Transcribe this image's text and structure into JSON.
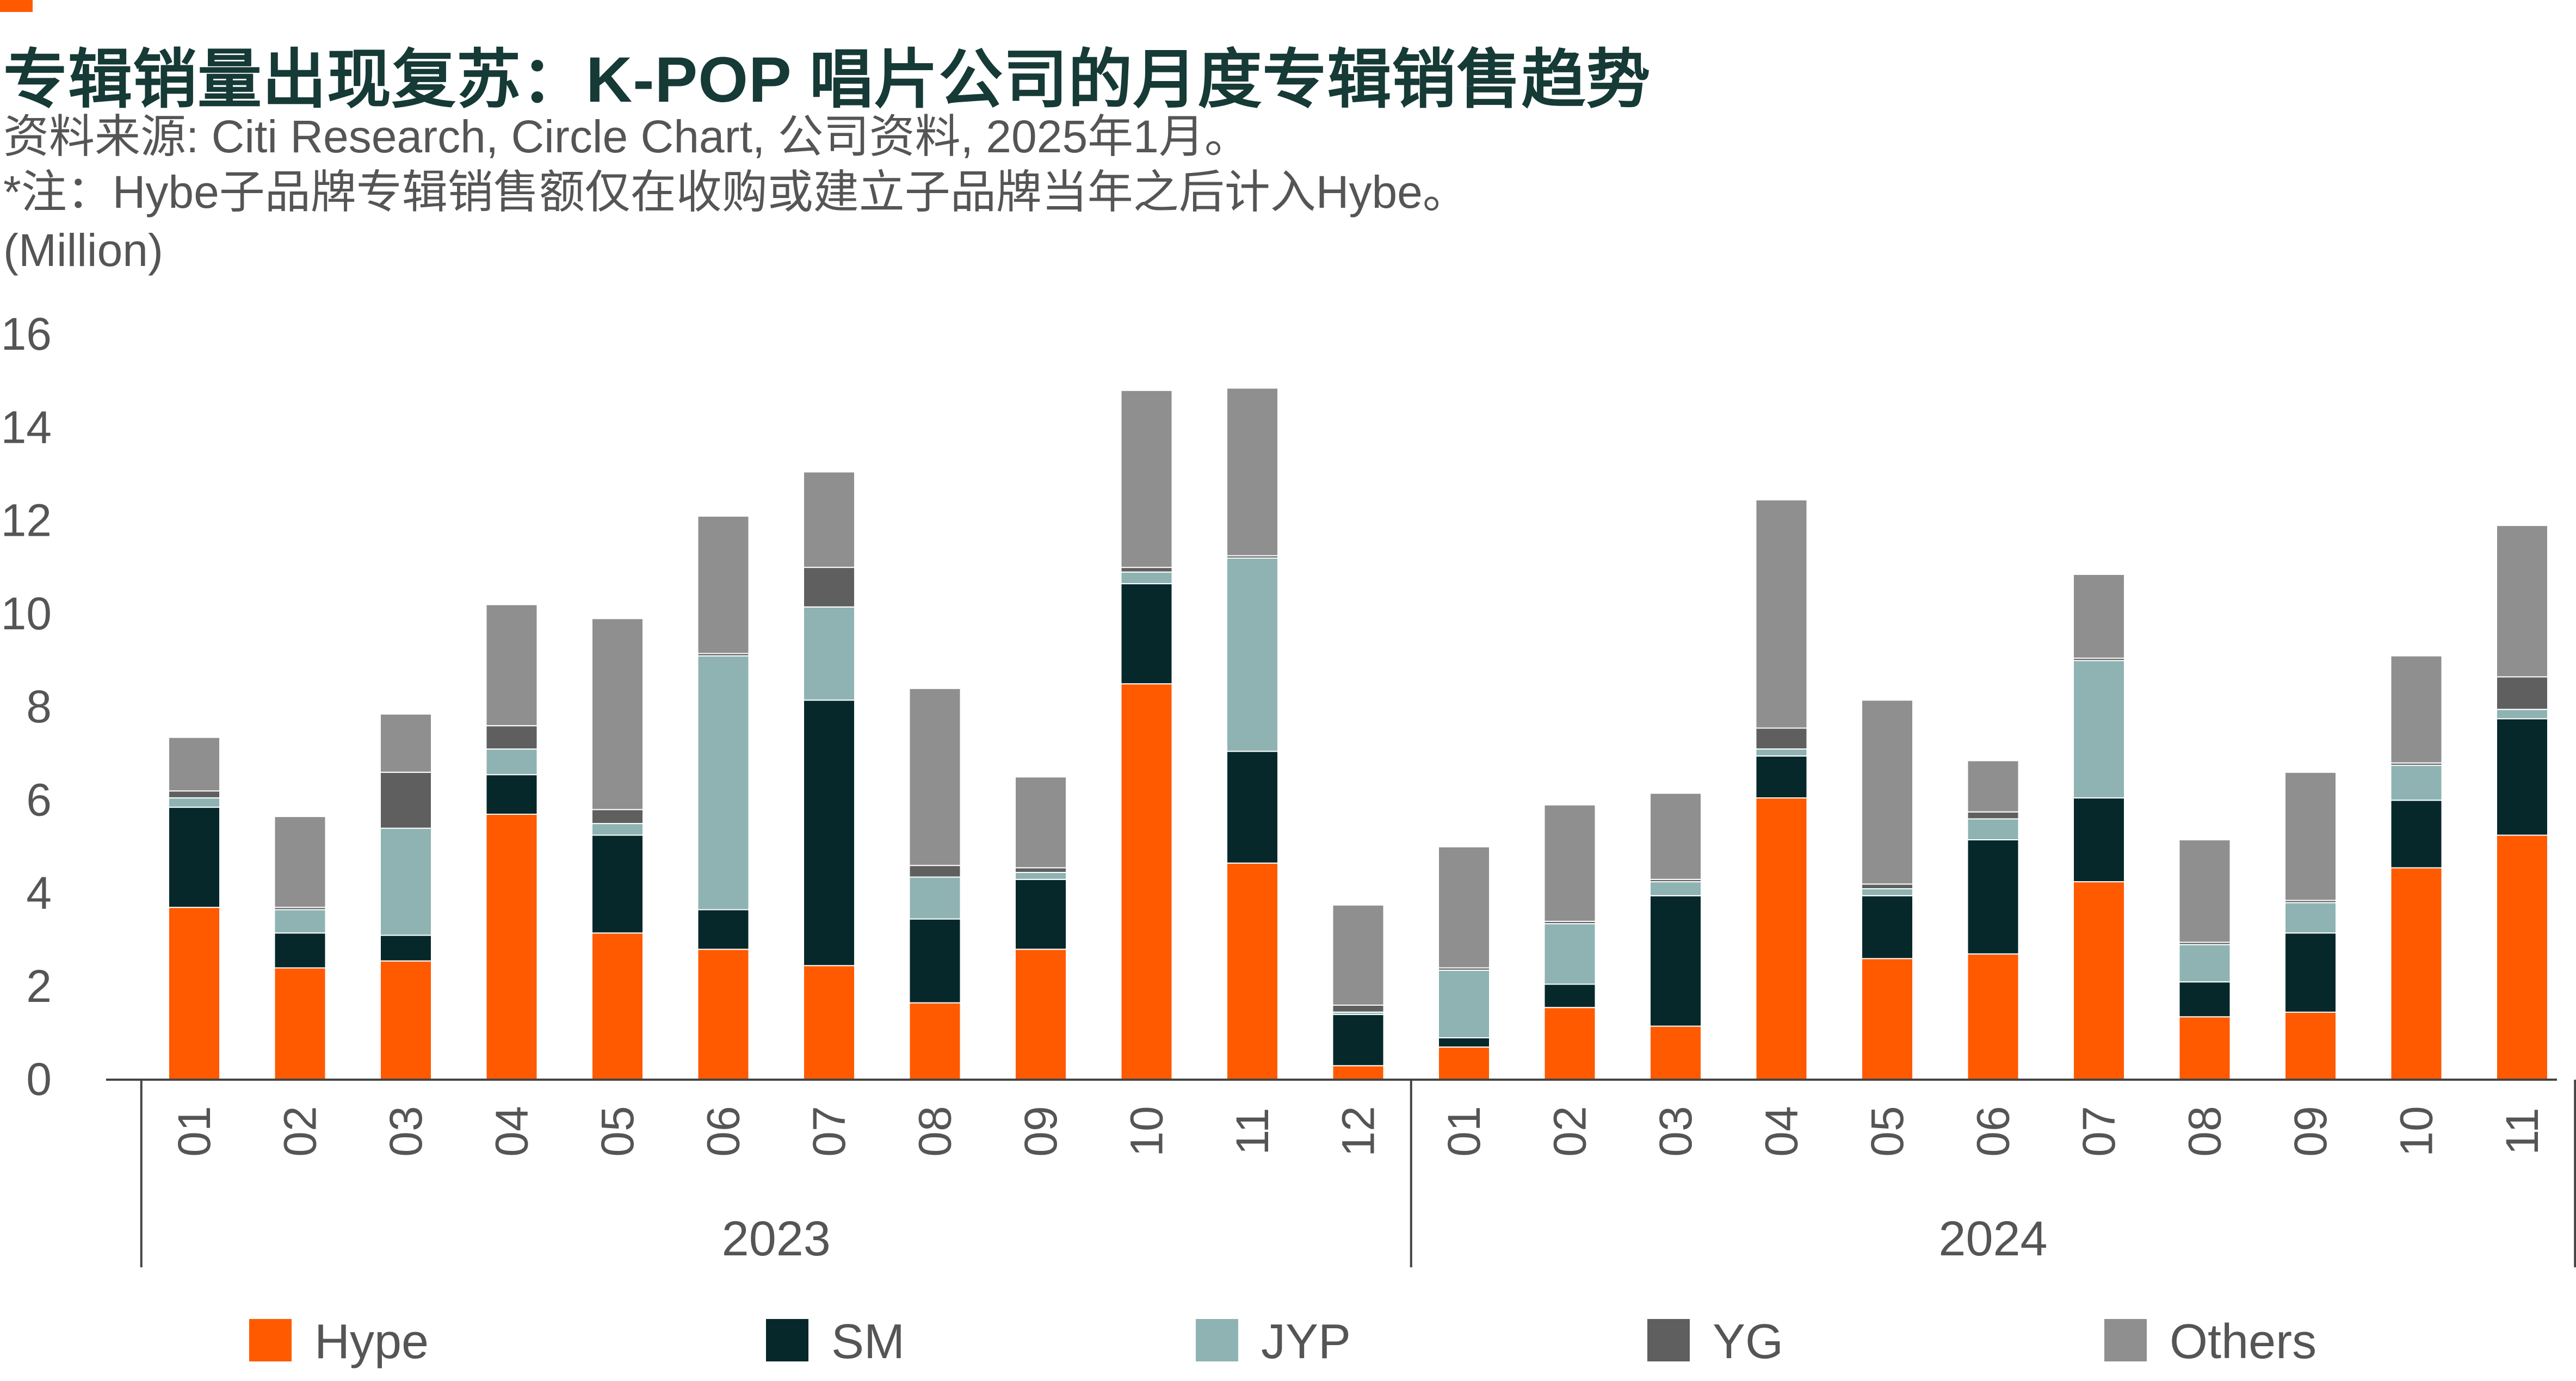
{
  "title": "专辑销量出现复苏：K-POP 唱片公司的月度专辑销售趋势",
  "source_note": "资料来源:  Citi Research, Circle Chart, 公司资料, 2025年1月。",
  "footnote": "*注：Hybe子品牌专辑销售额仅在收购或建立子品牌当年之后计入Hybe。",
  "colors": {
    "accent": "#ff5a00",
    "title": "#163a36",
    "Hype": "#ff5a00",
    "SM": "#06282b",
    "JYP": "#8eb3b2",
    "YG": "#5f5f5f",
    "Others": "#8f8f8f"
  },
  "chart_data": {
    "type": "bar",
    "stacked": true,
    "ylabel": "(Million)",
    "ylim": [
      0,
      16
    ],
    "yticks": [
      0,
      2,
      4,
      6,
      8,
      10,
      12,
      14,
      16
    ],
    "grid": false,
    "legend_position": "bottom",
    "groups": [
      {
        "label": "2023",
        "months": [
          "01",
          "02",
          "03",
          "04",
          "05",
          "06",
          "07",
          "08",
          "09",
          "10",
          "11",
          "12"
        ]
      },
      {
        "label": "2024",
        "months": [
          "01",
          "02",
          "03",
          "04",
          "05",
          "06",
          "07",
          "08",
          "09",
          "10",
          "11"
        ]
      }
    ],
    "categories": [
      "2023-01",
      "2023-02",
      "2023-03",
      "2023-04",
      "2023-05",
      "2023-06",
      "2023-07",
      "2023-08",
      "2023-09",
      "2023-10",
      "2023-11",
      "2023-12",
      "2024-01",
      "2024-02",
      "2024-03",
      "2024-04",
      "2024-05",
      "2024-06",
      "2024-07",
      "2024-08",
      "2024-09",
      "2024-10",
      "2024-11"
    ],
    "series": [
      {
        "name": "Hype",
        "values": [
          3.7,
          2.4,
          2.55,
          5.7,
          3.15,
          2.8,
          2.45,
          1.65,
          2.8,
          8.5,
          4.65,
          0.3,
          0.7,
          1.55,
          1.15,
          6.05,
          2.6,
          2.7,
          4.25,
          1.35,
          1.45,
          4.55,
          5.25
        ]
      },
      {
        "name": "SM",
        "values": [
          2.15,
          0.75,
          0.55,
          0.85,
          2.1,
          0.85,
          5.7,
          1.8,
          1.5,
          2.15,
          2.4,
          1.1,
          0.2,
          0.5,
          2.8,
          0.9,
          1.35,
          2.45,
          1.8,
          0.75,
          1.7,
          1.45,
          2.5
        ]
      },
      {
        "name": "JYP",
        "values": [
          0.2,
          0.5,
          2.3,
          0.55,
          0.25,
          5.45,
          2.0,
          0.9,
          0.15,
          0.25,
          4.15,
          0.05,
          1.45,
          1.3,
          0.3,
          0.15,
          0.15,
          0.45,
          2.95,
          0.8,
          0.65,
          0.75,
          0.2
        ]
      },
      {
        "name": "YG",
        "values": [
          0.15,
          0.05,
          1.2,
          0.5,
          0.3,
          0.05,
          0.85,
          0.25,
          0.1,
          0.1,
          0.05,
          0.15,
          0.05,
          0.05,
          0.05,
          0.45,
          0.1,
          0.15,
          0.05,
          0.05,
          0.05,
          0.05,
          0.7
        ]
      },
      {
        "name": "Others",
        "values": [
          1.15,
          1.95,
          1.25,
          2.6,
          4.1,
          2.95,
          2.05,
          3.8,
          1.95,
          3.8,
          3.6,
          2.15,
          2.6,
          2.5,
          1.85,
          4.9,
          3.95,
          1.1,
          1.8,
          2.2,
          2.75,
          2.3,
          3.25
        ]
      }
    ]
  }
}
